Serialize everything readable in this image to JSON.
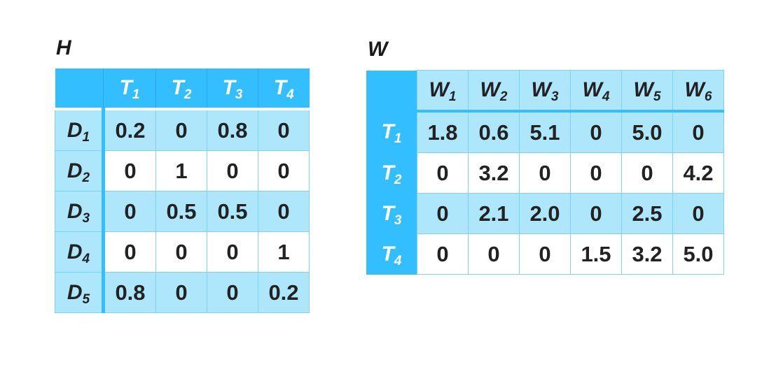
{
  "h": {
    "title": "H",
    "col_headers": [
      {
        "base": "T",
        "sub": "1"
      },
      {
        "base": "T",
        "sub": "2"
      },
      {
        "base": "T",
        "sub": "3"
      },
      {
        "base": "T",
        "sub": "4"
      }
    ],
    "rows": [
      {
        "base": "D",
        "sub": "1",
        "cells": [
          "0.2",
          "0",
          "0.8",
          "0"
        ]
      },
      {
        "base": "D",
        "sub": "2",
        "cells": [
          "0",
          "1",
          "0",
          "0"
        ]
      },
      {
        "base": "D",
        "sub": "3",
        "cells": [
          "0",
          "0.5",
          "0.5",
          "0"
        ]
      },
      {
        "base": "D",
        "sub": "4",
        "cells": [
          "0",
          "0",
          "0",
          "1"
        ]
      },
      {
        "base": "D",
        "sub": "5",
        "cells": [
          "0.8",
          "0",
          "0",
          "0.2"
        ]
      }
    ]
  },
  "w": {
    "title": "W",
    "col_headers": [
      {
        "base": "W",
        "sub": "1"
      },
      {
        "base": "W",
        "sub": "2"
      },
      {
        "base": "W",
        "sub": "3"
      },
      {
        "base": "W",
        "sub": "4"
      },
      {
        "base": "W",
        "sub": "5"
      },
      {
        "base": "W",
        "sub": "6"
      }
    ],
    "rows": [
      {
        "base": "T",
        "sub": "1",
        "cells": [
          "1.8",
          "0.6",
          "5.1",
          "0",
          "5.0",
          "0"
        ]
      },
      {
        "base": "T",
        "sub": "2",
        "cells": [
          "0",
          "3.2",
          "0",
          "0",
          "0",
          "4.2"
        ]
      },
      {
        "base": "T",
        "sub": "3",
        "cells": [
          "0",
          "2.1",
          "2.0",
          "0",
          "2.5",
          "0"
        ]
      },
      {
        "base": "T",
        "sub": "4",
        "cells": [
          "0",
          "0",
          "0",
          "1.5",
          "3.2",
          "5.0"
        ]
      }
    ]
  },
  "colors": {
    "header_blue": "#33bfff",
    "band_light": "#aee6fb",
    "cell_border": "#7dd3f0"
  }
}
